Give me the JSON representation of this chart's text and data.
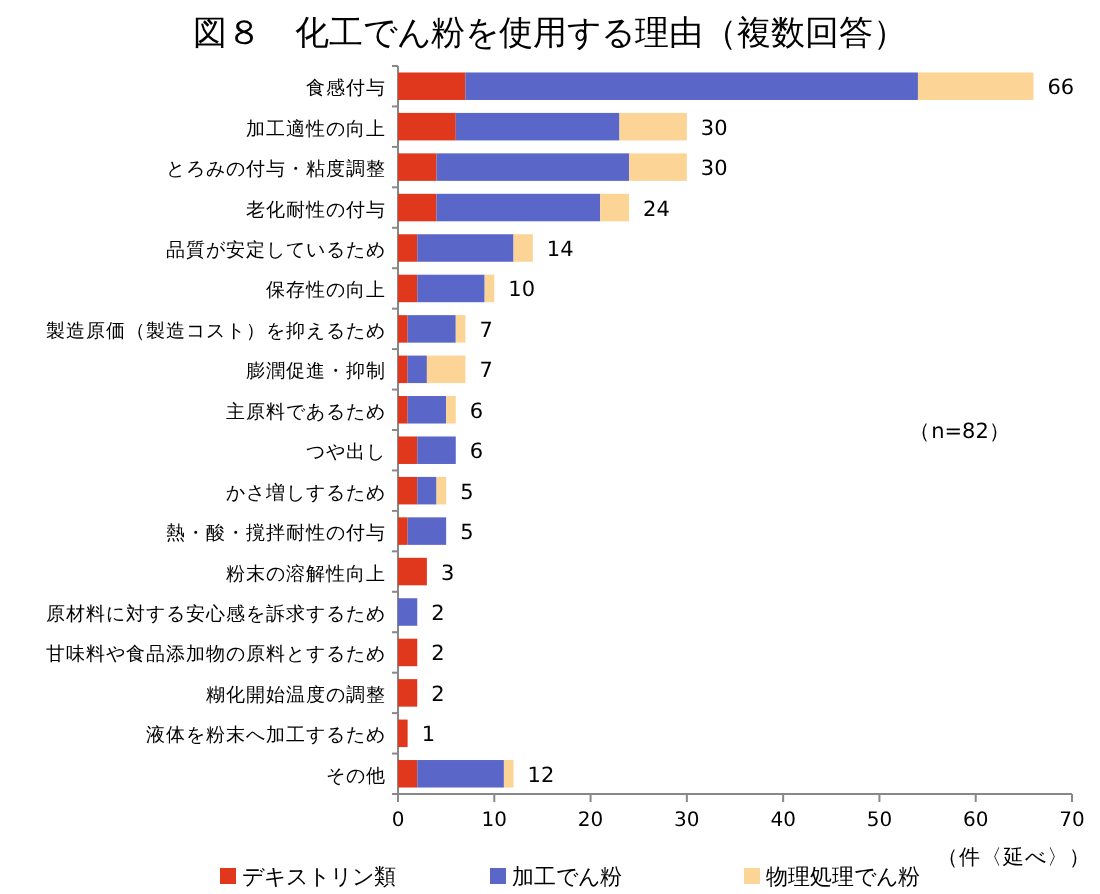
{
  "chart_data": {
    "type": "bar",
    "orientation": "horizontal",
    "stacked": true,
    "title": "図８　化工でん粉を使用する理由（複数回答）",
    "categories": [
      "食感付与",
      "加工適性の向上",
      "とろみの付与・粘度調整",
      "老化耐性の付与",
      "品質が安定しているため",
      "保存性の向上",
      "製造原価（製造コスト）を抑えるため",
      "膨潤促進・抑制",
      "主原料であるため",
      "つや出し",
      "かさ増しするため",
      "熱・酸・撹拌耐性の付与",
      "粉末の溶解性向上",
      "原材料に対する安心感を訴求するため",
      "甘味料や食品添加物の原料とするため",
      "糊化開始温度の調整",
      "液体を粉末へ加工するため",
      "その他"
    ],
    "series": [
      {
        "name": "デキストリン類",
        "color": "#e0381c",
        "values": [
          7,
          6,
          4,
          4,
          2,
          2,
          1,
          1,
          1,
          2,
          2,
          1,
          3,
          0,
          2,
          2,
          1,
          2
        ]
      },
      {
        "name": "加工でん粉",
        "color": "#5a66c8",
        "values": [
          47,
          17,
          20,
          17,
          10,
          7,
          5,
          2,
          4,
          4,
          2,
          4,
          0,
          2,
          0,
          0,
          0,
          9
        ]
      },
      {
        "name": "物理処理でん粉",
        "color": "#fcd596",
        "values": [
          12,
          7,
          6,
          3,
          2,
          1,
          1,
          4,
          1,
          0,
          1,
          0,
          0,
          0,
          0,
          0,
          0,
          1
        ]
      }
    ],
    "totals": [
      "66",
      "30",
      "30",
      "24",
      "14",
      "10",
      "7",
      "7",
      "6",
      "6",
      "5",
      "5",
      "3",
      "2",
      "2",
      "2",
      "1",
      "12"
    ],
    "xlim": [
      0,
      70
    ],
    "xticks": [
      0,
      10,
      20,
      30,
      40,
      50,
      60,
      70
    ],
    "grid": false,
    "legend": "bottom",
    "annotations": [
      "（n=82）",
      "（件〈延べ〉）"
    ]
  }
}
